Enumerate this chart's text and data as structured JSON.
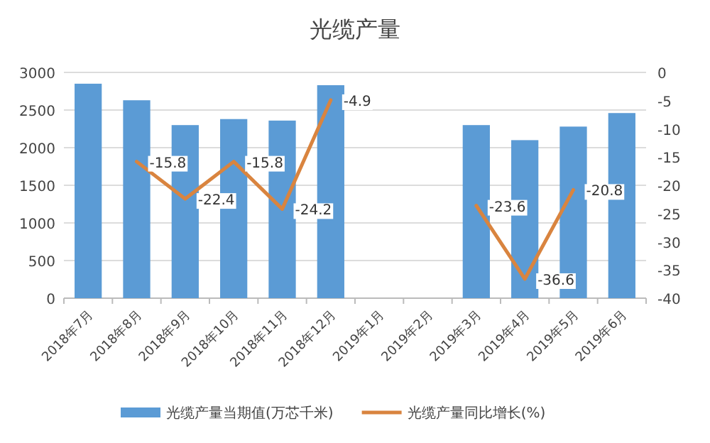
{
  "chart_data": {
    "type": "bar",
    "title": "光缆产量",
    "categories": [
      "2018年7月",
      "2018年8月",
      "2018年9月",
      "2018年10月",
      "2018年11月",
      "2018年12月",
      "2019年1月",
      "2019年2月",
      "2019年3月",
      "2019年4月",
      "2019年5月",
      "2019年6月"
    ],
    "series": [
      {
        "name": "光缆产量当期值(万芯千米)",
        "color": "#5b9bd5",
        "values": [
          2850,
          2630,
          2300,
          2380,
          2360,
          2830,
          null,
          null,
          2300,
          2100,
          2280,
          2460
        ]
      },
      {
        "name": "光缆产量同比增长(%)",
        "type": "line",
        "axis": "y2",
        "color": "#d9843f",
        "values": [
          null,
          -15.8,
          -22.4,
          -15.8,
          -24.2,
          -4.9,
          null,
          null,
          -23.6,
          -36.6,
          -20.8,
          null
        ],
        "value_labels": [
          null,
          "-15.8",
          "-22.4",
          "-15.8",
          "-24.2",
          "-4.9",
          null,
          null,
          "-23.6",
          "-36.6",
          "-20.8",
          null
        ]
      }
    ],
    "ylim": [
      0,
      3000
    ],
    "yticks": [
      0,
      500,
      1000,
      1500,
      2000,
      2500,
      3000
    ],
    "y2lim": [
      -40,
      0
    ],
    "y2ticks": [
      -40,
      -35,
      -30,
      -25,
      -20,
      -15,
      -10,
      -5,
      0
    ],
    "grid": "y",
    "legend": "bottom"
  }
}
